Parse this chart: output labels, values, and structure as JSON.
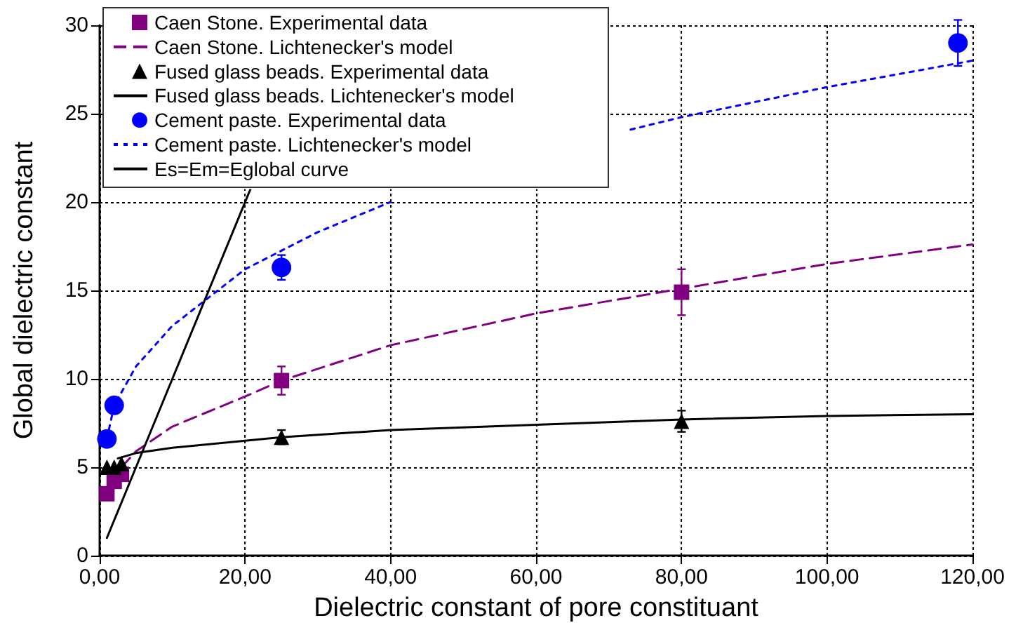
{
  "chart_data": {
    "type": "scatter",
    "xlabel": "Dielectric constant of pore constituant",
    "ylabel": "Global dielectric constant",
    "xlim": [
      0,
      120
    ],
    "ylim": [
      0,
      30
    ],
    "xticks": [
      {
        "value": 0,
        "label": "0,00"
      },
      {
        "value": 20,
        "label": "20,00"
      },
      {
        "value": 40,
        "label": "40,00"
      },
      {
        "value": 60,
        "label": "60,00"
      },
      {
        "value": 80,
        "label": "80,00"
      },
      {
        "value": 100,
        "label": "100,00"
      },
      {
        "value": 120,
        "label": "120,00"
      }
    ],
    "yticks": [
      0,
      5,
      10,
      15,
      20,
      25,
      30
    ],
    "grid": true,
    "legend": "top left",
    "series": [
      {
        "name": "Caen Stone. Experimental data",
        "type": "scatter",
        "marker": "square",
        "color": "#800080",
        "x": [
          1,
          2,
          3,
          25,
          80
        ],
        "values": [
          3.5,
          4.2,
          4.6,
          9.9,
          14.9
        ],
        "errors": [
          null,
          null,
          null,
          0.8,
          1.3
        ]
      },
      {
        "name": "Caen Stone. Lichtenecker's model",
        "type": "line",
        "marker": "none",
        "line_style": "dashed",
        "color": "#800080",
        "x": [
          3,
          5,
          10,
          20,
          25,
          40,
          60,
          80,
          100,
          120
        ],
        "values": [
          5.0,
          5.9,
          7.3,
          9.0,
          9.9,
          11.9,
          13.7,
          15.1,
          16.5,
          17.6
        ]
      },
      {
        "name": "Fused glass beads. Experimental data",
        "type": "scatter",
        "marker": "triangle",
        "color": "#000000",
        "x": [
          1,
          2,
          3,
          25,
          80
        ],
        "values": [
          5.0,
          5.0,
          5.2,
          6.7,
          7.6
        ],
        "errors": [
          null,
          null,
          null,
          0.4,
          0.6
        ]
      },
      {
        "name": "Fused glass beads. Lichtenecker's model",
        "type": "line",
        "marker": "none",
        "line_style": "solid",
        "color": "#000000",
        "x": [
          2.5,
          5,
          10,
          20,
          25,
          40,
          60,
          80,
          100,
          120
        ],
        "values": [
          5.5,
          5.8,
          6.1,
          6.5,
          6.7,
          7.1,
          7.4,
          7.7,
          7.9,
          8.0
        ]
      },
      {
        "name": "Cement paste. Experimental data",
        "type": "scatter",
        "marker": "circle",
        "color": "#0000ff",
        "x": [
          1,
          2,
          25,
          118
        ],
        "values": [
          6.6,
          8.5,
          16.3,
          29.0
        ],
        "errors": [
          null,
          null,
          0.7,
          1.3
        ]
      },
      {
        "name": "Cement paste. Lichtenecker's model",
        "type": "line",
        "marker": "none",
        "line_style": "dotted",
        "color": "#0000ff",
        "x": [
          1,
          2,
          5,
          10,
          20,
          30,
          40,
          46,
          60,
          73,
          80,
          100,
          120
        ],
        "values": [
          6.6,
          8.5,
          10.7,
          13.0,
          16.2,
          18.3,
          20.0,
          null,
          null,
          24.1,
          24.8,
          26.5,
          28.0
        ]
      },
      {
        "name": "Es=Em=Eglobal curve",
        "type": "line",
        "marker": "none",
        "line_style": "solid",
        "color": "#000000",
        "x": [
          1,
          20.8
        ],
        "values": [
          1,
          20.8
        ]
      }
    ]
  }
}
